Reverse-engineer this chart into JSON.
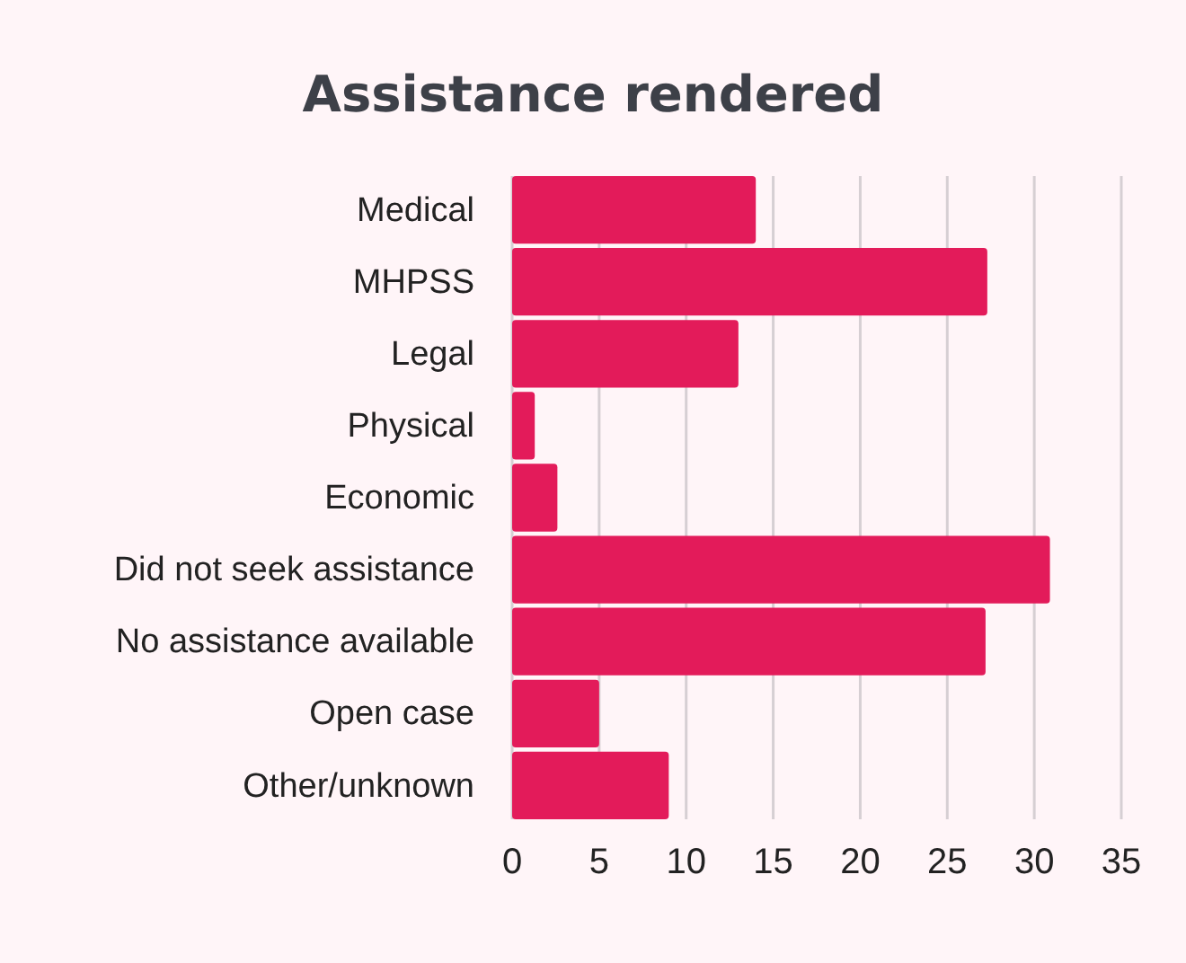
{
  "chart_data": {
    "type": "bar",
    "orientation": "horizontal",
    "title": "Assistance rendered",
    "categories": [
      "Medical",
      "MHPSS",
      "Legal",
      "Physical",
      "Economic",
      "Did not seek assistance",
      "No assistance available",
      "Open case",
      "Other/unknown"
    ],
    "values": [
      14,
      27.3,
      13,
      1.3,
      2.6,
      30.9,
      27.2,
      5,
      9
    ],
    "color": "#e31b5a",
    "xlim": [
      0,
      35
    ],
    "xticks": [
      0,
      5,
      10,
      15,
      20,
      25,
      30,
      35
    ],
    "grid": "x"
  }
}
